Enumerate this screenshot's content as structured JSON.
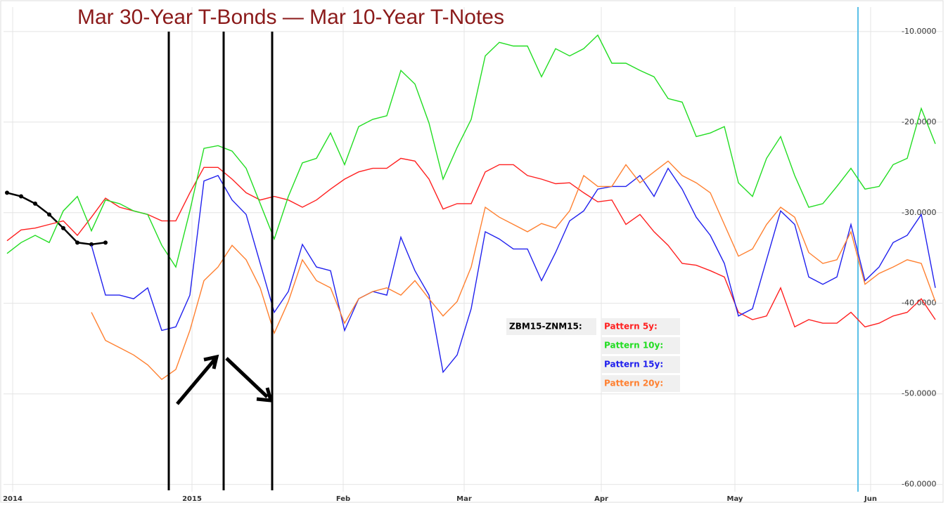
{
  "chart_data": {
    "type": "line",
    "title": "Mar 30-Year T-Bonds — Mar 10-Year T-Notes",
    "x": [
      1,
      3,
      5,
      7,
      9,
      11,
      13,
      15,
      17,
      19,
      21,
      23,
      25,
      27,
      29,
      31,
      33,
      35,
      37,
      39,
      41,
      43,
      45,
      47,
      49,
      51,
      53,
      55,
      57,
      59,
      61,
      63,
      65,
      67,
      69,
      71,
      73,
      75,
      77,
      79,
      81,
      83,
      85,
      87,
      89,
      91,
      93,
      95,
      97,
      99,
      101,
      103,
      105,
      107,
      109,
      111,
      113,
      115,
      117,
      119,
      121,
      123,
      125,
      127,
      129,
      131,
      133
    ],
    "xlim": [
      0.5,
      134
    ],
    "xticks": [
      {
        "value": 1.8,
        "label": "2014"
      },
      {
        "value": 27.3,
        "label": "2015"
      },
      {
        "value": 48.8,
        "label": "Feb"
      },
      {
        "value": 66.0,
        "label": "Mar"
      },
      {
        "value": 85.5,
        "label": "Apr"
      },
      {
        "value": 104.5,
        "label": "May"
      },
      {
        "value": 123.8,
        "label": "Jun"
      }
    ],
    "ylim": [
      -60.8,
      -7.3
    ],
    "yticks": [
      {
        "value": -10,
        "label": "-10.0000"
      },
      {
        "value": -20,
        "label": "-20.0000"
      },
      {
        "value": -30,
        "label": "-30.0000"
      },
      {
        "value": -40,
        "label": "-40.0000"
      },
      {
        "value": -50,
        "label": "-50.0000"
      },
      {
        "value": -60,
        "label": "-60.0000"
      }
    ],
    "grid": true,
    "series": [
      {
        "name": "ZBM15-ZNM15:",
        "color": "#000000",
        "markers": true,
        "values": [
          -27.8,
          -28.2,
          -29.0,
          -30.2,
          -31.7,
          -33.3,
          -33.5,
          -33.3,
          null,
          null,
          null,
          null,
          null,
          null,
          null,
          null,
          null,
          null,
          null,
          null,
          null,
          null,
          null,
          null,
          null,
          null,
          null,
          null,
          null,
          null,
          null,
          null,
          null,
          null,
          null,
          null,
          null,
          null,
          null,
          null,
          null,
          null,
          null,
          null,
          null,
          null,
          null,
          null,
          null,
          null,
          null,
          null,
          null,
          null,
          null,
          null,
          null,
          null,
          null,
          null,
          null,
          null,
          null,
          null,
          null,
          null,
          null
        ]
      },
      {
        "name": "Pattern 5y:",
        "color": "#ff2020",
        "values": [
          -33.1,
          -31.9,
          -31.7,
          -31.3,
          -30.9,
          -32.5,
          -30.5,
          -28.4,
          -29.4,
          -29.8,
          -30.2,
          -30.9,
          -30.9,
          -27.8,
          -25.0,
          -25.0,
          -26.3,
          -27.8,
          -28.6,
          -28.2,
          -28.6,
          -29.4,
          -28.6,
          -27.4,
          -26.3,
          -25.5,
          -25.1,
          -25.1,
          -24.0,
          -24.3,
          -26.3,
          -29.6,
          -29.0,
          -29.0,
          -25.5,
          -24.7,
          -24.7,
          -25.9,
          -26.3,
          -26.8,
          -26.7,
          -27.8,
          -28.8,
          -28.6,
          -31.3,
          -30.2,
          -32.1,
          -33.6,
          -35.6,
          -35.8,
          -36.4,
          -37.1,
          -41.0,
          -41.8,
          -41.4,
          -38.3,
          -42.6,
          -41.8,
          -42.2,
          -42.2,
          -41.0,
          -42.6,
          -42.2,
          -41.4,
          -41.0,
          -39.5,
          -41.8
        ]
      },
      {
        "name": "Pattern 10y:",
        "color": "#22dd22",
        "values": [
          -34.5,
          -33.3,
          -32.5,
          -33.3,
          -29.8,
          -28.2,
          -32.0,
          -28.6,
          -29.0,
          -29.8,
          -30.2,
          -33.6,
          -36.0,
          -29.8,
          -22.9,
          -22.6,
          -23.2,
          -25.1,
          -29.0,
          -32.9,
          -28.2,
          -24.5,
          -24.0,
          -21.2,
          -24.7,
          -20.5,
          -19.7,
          -19.3,
          -14.3,
          -15.8,
          -20.1,
          -26.3,
          -22.8,
          -19.7,
          -12.7,
          -11.2,
          -11.6,
          -11.6,
          -15.0,
          -11.9,
          -12.7,
          -11.9,
          -10.4,
          -13.5,
          -13.5,
          -14.3,
          -15.0,
          -17.4,
          -17.8,
          -21.6,
          -21.2,
          -20.5,
          -26.7,
          -28.2,
          -24.0,
          -21.6,
          -25.9,
          -29.4,
          -29.0,
          -27.1,
          -25.1,
          -27.4,
          -27.1,
          -24.7,
          -24.0,
          -18.5,
          -22.4
        ]
      },
      {
        "name": "Pattern 15y:",
        "color": "#2020ee",
        "values": [
          null,
          null,
          null,
          null,
          null,
          null,
          -33.6,
          -39.1,
          -39.1,
          -39.5,
          -38.3,
          -43.0,
          -42.6,
          -39.1,
          -26.5,
          -25.9,
          -28.6,
          -30.2,
          -35.6,
          -41.0,
          -38.7,
          -33.5,
          -36.0,
          -36.4,
          -43.0,
          -39.5,
          -38.7,
          -39.1,
          -32.7,
          -36.4,
          -39.1,
          -47.6,
          -45.7,
          -40.6,
          -32.1,
          -32.9,
          -34.0,
          -34.0,
          -37.5,
          -34.4,
          -30.9,
          -29.8,
          -27.4,
          -27.1,
          -27.1,
          -25.9,
          -28.2,
          -25.1,
          -27.4,
          -30.5,
          -32.5,
          -35.6,
          -41.4,
          -40.6,
          -35.2,
          -29.8,
          -31.3,
          -37.1,
          -37.9,
          -37.1,
          -31.3,
          -37.5,
          -36.0,
          -33.3,
          -32.5,
          -30.2,
          -38.3
        ]
      },
      {
        "name": "Pattern 20y:",
        "color": "#ff8030",
        "values": [
          null,
          null,
          null,
          null,
          null,
          null,
          -41.0,
          -44.1,
          -44.9,
          -45.7,
          -46.8,
          -48.4,
          -47.3,
          -43.0,
          -37.5,
          -36.0,
          -33.6,
          -35.2,
          -38.3,
          -43.3,
          -39.8,
          -35.2,
          -37.5,
          -38.3,
          -42.2,
          -39.5,
          -38.7,
          -38.3,
          -39.1,
          -37.5,
          -39.5,
          -41.4,
          -39.8,
          -36.0,
          -29.4,
          -30.5,
          -31.3,
          -32.1,
          -31.2,
          -31.7,
          -29.8,
          -25.9,
          -27.1,
          -27.1,
          -24.7,
          -26.7,
          -25.5,
          -24.3,
          -25.9,
          -26.7,
          -27.8,
          -31.3,
          -34.8,
          -34.0,
          -31.3,
          -29.4,
          -30.5,
          -34.4,
          -35.6,
          -35.2,
          -32.1,
          -37.9,
          -36.7,
          -36.0,
          -35.2,
          -35.6,
          -39.8
        ]
      }
    ]
  }
}
